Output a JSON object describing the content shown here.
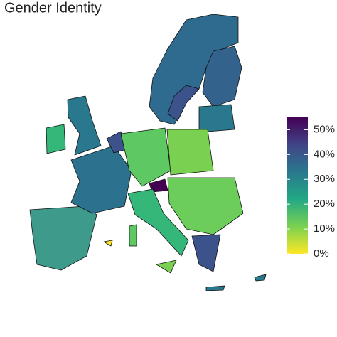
{
  "chart_data": {
    "type": "choropleth",
    "title": "Gender Identity",
    "colorbar": {
      "lim": [
        0,
        55
      ],
      "ticks": [
        {
          "value": 0,
          "label": "0%"
        },
        {
          "value": 10,
          "label": "10%"
        },
        {
          "value": 20,
          "label": "20%"
        },
        {
          "value": 30,
          "label": "30%"
        },
        {
          "value": 40,
          "label": "40%"
        },
        {
          "value": 50,
          "label": "50%"
        }
      ],
      "colors": [
        "#fde725",
        "#7ad151",
        "#22a884",
        "#2a788e",
        "#414487",
        "#440154"
      ]
    }
  }
}
